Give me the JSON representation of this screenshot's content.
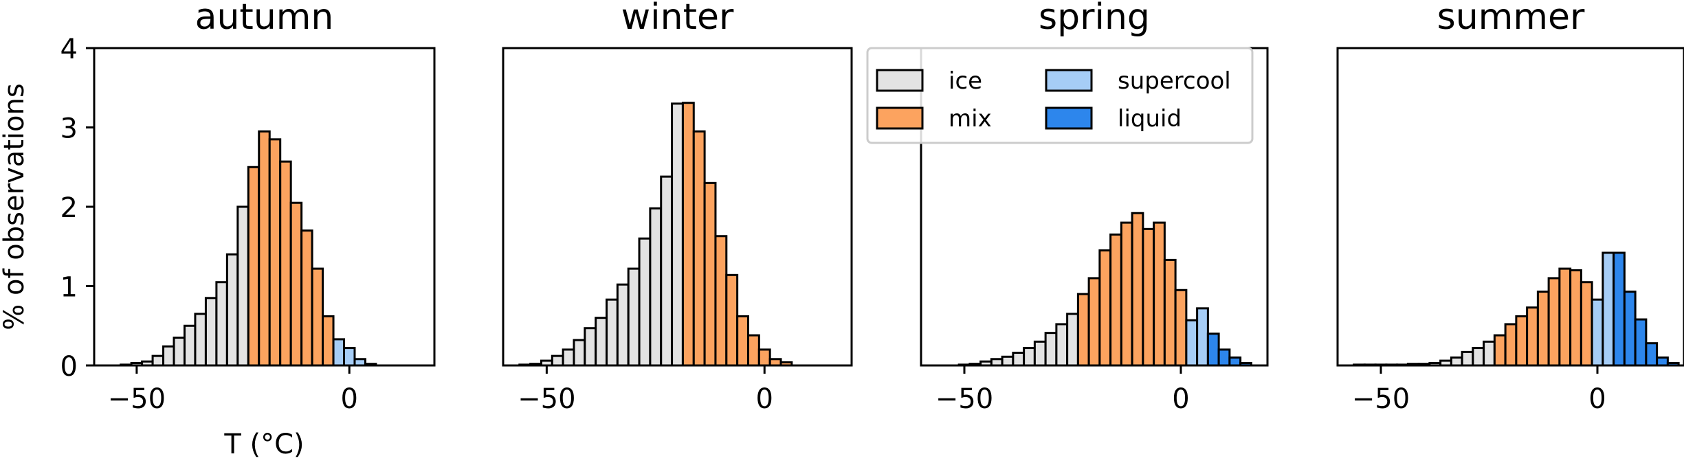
{
  "chart_data": [
    {
      "type": "bar",
      "title": "autumn",
      "xlabel": "T (°C)",
      "ylabel": "% of observations",
      "xlim": [
        -60,
        20
      ],
      "ylim": [
        0,
        4
      ],
      "x_ticks": [
        -50,
        0
      ],
      "y_ticks": [
        0,
        1,
        2,
        3,
        4
      ],
      "bin_width": 2.5,
      "bins": [
        {
          "x": -52.5,
          "value": 0.01,
          "category": "ice"
        },
        {
          "x": -50.0,
          "value": 0.03,
          "category": "ice"
        },
        {
          "x": -47.5,
          "value": 0.05,
          "category": "ice"
        },
        {
          "x": -45.0,
          "value": 0.12,
          "category": "ice"
        },
        {
          "x": -42.5,
          "value": 0.24,
          "category": "ice"
        },
        {
          "x": -40.0,
          "value": 0.35,
          "category": "ice"
        },
        {
          "x": -37.5,
          "value": 0.5,
          "category": "ice"
        },
        {
          "x": -35.0,
          "value": 0.65,
          "category": "ice"
        },
        {
          "x": -32.5,
          "value": 0.85,
          "category": "ice"
        },
        {
          "x": -30.0,
          "value": 1.05,
          "category": "ice"
        },
        {
          "x": -27.5,
          "value": 1.4,
          "category": "ice"
        },
        {
          "x": -25.0,
          "value": 2.0,
          "category": "ice"
        },
        {
          "x": -22.5,
          "value": 2.5,
          "category": "mix"
        },
        {
          "x": -20.0,
          "value": 2.95,
          "category": "mix"
        },
        {
          "x": -17.5,
          "value": 2.85,
          "category": "mix"
        },
        {
          "x": -15.0,
          "value": 2.57,
          "category": "mix"
        },
        {
          "x": -12.5,
          "value": 2.05,
          "category": "mix"
        },
        {
          "x": -10.0,
          "value": 1.7,
          "category": "mix"
        },
        {
          "x": -7.5,
          "value": 1.22,
          "category": "mix"
        },
        {
          "x": -5.0,
          "value": 0.62,
          "category": "mix"
        },
        {
          "x": -2.5,
          "value": 0.33,
          "category": "supercool"
        },
        {
          "x": 0.0,
          "value": 0.22,
          "category": "supercool"
        },
        {
          "x": 2.5,
          "value": 0.08,
          "category": "supercool"
        },
        {
          "x": 5.0,
          "value": 0.02,
          "category": "liquid"
        }
      ]
    },
    {
      "type": "bar",
      "title": "winter",
      "xlim": [
        -60,
        20
      ],
      "ylim": [
        0,
        4
      ],
      "x_ticks": [
        -50,
        0
      ],
      "bin_width": 2.5,
      "bins": [
        {
          "x": -55.0,
          "value": 0.01,
          "category": "ice"
        },
        {
          "x": -52.5,
          "value": 0.02,
          "category": "ice"
        },
        {
          "x": -50.0,
          "value": 0.06,
          "category": "ice"
        },
        {
          "x": -47.5,
          "value": 0.12,
          "category": "ice"
        },
        {
          "x": -45.0,
          "value": 0.2,
          "category": "ice"
        },
        {
          "x": -42.5,
          "value": 0.32,
          "category": "ice"
        },
        {
          "x": -40.0,
          "value": 0.47,
          "category": "ice"
        },
        {
          "x": -37.5,
          "value": 0.6,
          "category": "ice"
        },
        {
          "x": -35.0,
          "value": 0.83,
          "category": "ice"
        },
        {
          "x": -32.5,
          "value": 1.02,
          "category": "ice"
        },
        {
          "x": -30.0,
          "value": 1.22,
          "category": "ice"
        },
        {
          "x": -27.5,
          "value": 1.6,
          "category": "ice"
        },
        {
          "x": -25.0,
          "value": 1.98,
          "category": "ice"
        },
        {
          "x": -22.5,
          "value": 2.38,
          "category": "ice"
        },
        {
          "x": -20.0,
          "value": 3.3,
          "category": "ice"
        },
        {
          "x": -17.5,
          "value": 3.31,
          "category": "mix"
        },
        {
          "x": -15.0,
          "value": 2.95,
          "category": "mix"
        },
        {
          "x": -12.5,
          "value": 2.3,
          "category": "mix"
        },
        {
          "x": -10.0,
          "value": 1.63,
          "category": "mix"
        },
        {
          "x": -7.5,
          "value": 1.14,
          "category": "mix"
        },
        {
          "x": -5.0,
          "value": 0.62,
          "category": "mix"
        },
        {
          "x": -2.5,
          "value": 0.38,
          "category": "mix"
        },
        {
          "x": 0.0,
          "value": 0.2,
          "category": "mix"
        },
        {
          "x": 2.5,
          "value": 0.08,
          "category": "mix"
        },
        {
          "x": 5.0,
          "value": 0.04,
          "category": "mix"
        }
      ]
    },
    {
      "type": "bar",
      "title": "spring",
      "xlim": [
        -60,
        20
      ],
      "ylim": [
        0,
        4
      ],
      "x_ticks": [
        -50,
        0
      ],
      "bin_width": 2.5,
      "bins": [
        {
          "x": -50.0,
          "value": 0.01,
          "category": "ice"
        },
        {
          "x": -47.5,
          "value": 0.02,
          "category": "ice"
        },
        {
          "x": -45.0,
          "value": 0.05,
          "category": "ice"
        },
        {
          "x": -42.5,
          "value": 0.08,
          "category": "ice"
        },
        {
          "x": -40.0,
          "value": 0.11,
          "category": "ice"
        },
        {
          "x": -37.5,
          "value": 0.16,
          "category": "ice"
        },
        {
          "x": -35.0,
          "value": 0.22,
          "category": "ice"
        },
        {
          "x": -32.5,
          "value": 0.3,
          "category": "ice"
        },
        {
          "x": -30.0,
          "value": 0.41,
          "category": "ice"
        },
        {
          "x": -27.5,
          "value": 0.52,
          "category": "ice"
        },
        {
          "x": -25.0,
          "value": 0.65,
          "category": "ice"
        },
        {
          "x": -22.5,
          "value": 0.9,
          "category": "mix"
        },
        {
          "x": -20.0,
          "value": 1.1,
          "category": "mix"
        },
        {
          "x": -17.5,
          "value": 1.45,
          "category": "mix"
        },
        {
          "x": -15.0,
          "value": 1.65,
          "category": "mix"
        },
        {
          "x": -12.5,
          "value": 1.8,
          "category": "mix"
        },
        {
          "x": -10.0,
          "value": 1.92,
          "category": "mix"
        },
        {
          "x": -7.5,
          "value": 1.72,
          "category": "mix"
        },
        {
          "x": -5.0,
          "value": 1.8,
          "category": "mix"
        },
        {
          "x": -2.5,
          "value": 1.33,
          "category": "mix"
        },
        {
          "x": 0.0,
          "value": 0.95,
          "category": "mix"
        },
        {
          "x": 2.5,
          "value": 0.57,
          "category": "supercool"
        },
        {
          "x": 5.0,
          "value": 0.72,
          "category": "supercool"
        },
        {
          "x": 7.5,
          "value": 0.4,
          "category": "liquid"
        },
        {
          "x": 10.0,
          "value": 0.2,
          "category": "liquid"
        },
        {
          "x": 12.5,
          "value": 0.1,
          "category": "liquid"
        },
        {
          "x": 15.0,
          "value": 0.03,
          "category": "liquid"
        }
      ]
    },
    {
      "type": "bar",
      "title": "summer",
      "xlim": [
        -60,
        20
      ],
      "ylim": [
        0,
        4
      ],
      "x_ticks": [
        -50,
        0
      ],
      "bin_width": 2.5,
      "bins": [
        {
          "x": -55.0,
          "value": 0.01,
          "category": "ice"
        },
        {
          "x": -52.5,
          "value": 0.01,
          "category": "ice"
        },
        {
          "x": -50.0,
          "value": 0.01,
          "category": "ice"
        },
        {
          "x": -47.5,
          "value": 0.01,
          "category": "ice"
        },
        {
          "x": -45.0,
          "value": 0.01,
          "category": "ice"
        },
        {
          "x": -42.5,
          "value": 0.02,
          "category": "ice"
        },
        {
          "x": -40.0,
          "value": 0.02,
          "category": "ice"
        },
        {
          "x": -37.5,
          "value": 0.03,
          "category": "ice"
        },
        {
          "x": -35.0,
          "value": 0.06,
          "category": "ice"
        },
        {
          "x": -32.5,
          "value": 0.1,
          "category": "ice"
        },
        {
          "x": -30.0,
          "value": 0.17,
          "category": "ice"
        },
        {
          "x": -27.5,
          "value": 0.22,
          "category": "ice"
        },
        {
          "x": -25.0,
          "value": 0.3,
          "category": "ice"
        },
        {
          "x": -22.5,
          "value": 0.38,
          "category": "mix"
        },
        {
          "x": -20.0,
          "value": 0.52,
          "category": "mix"
        },
        {
          "x": -17.5,
          "value": 0.62,
          "category": "mix"
        },
        {
          "x": -15.0,
          "value": 0.73,
          "category": "mix"
        },
        {
          "x": -12.5,
          "value": 0.93,
          "category": "mix"
        },
        {
          "x": -10.0,
          "value": 1.1,
          "category": "mix"
        },
        {
          "x": -7.5,
          "value": 1.22,
          "category": "mix"
        },
        {
          "x": -5.0,
          "value": 1.2,
          "category": "mix"
        },
        {
          "x": -2.5,
          "value": 1.05,
          "category": "mix"
        },
        {
          "x": 0.0,
          "value": 0.83,
          "category": "supercool"
        },
        {
          "x": 2.5,
          "value": 1.42,
          "category": "supercool"
        },
        {
          "x": 5.0,
          "value": 1.42,
          "category": "liquid"
        },
        {
          "x": 7.5,
          "value": 0.93,
          "category": "liquid"
        },
        {
          "x": 10.0,
          "value": 0.58,
          "category": "liquid"
        },
        {
          "x": 12.5,
          "value": 0.28,
          "category": "liquid"
        },
        {
          "x": 15.0,
          "value": 0.1,
          "category": "liquid"
        },
        {
          "x": 17.5,
          "value": 0.03,
          "category": "liquid"
        }
      ]
    }
  ],
  "legend": {
    "placement": "upper spring panel",
    "entries": [
      {
        "label": "ice",
        "category": "ice"
      },
      {
        "label": "supercool",
        "category": "supercool"
      },
      {
        "label": "mix",
        "category": "mix"
      },
      {
        "label": "liquid",
        "category": "liquid"
      }
    ]
  },
  "colors": {
    "ice": "#e3e3e3",
    "mix": "#fca35f",
    "supercool": "#a6cdf6",
    "liquid": "#2d86ec",
    "edge": "#000000"
  }
}
